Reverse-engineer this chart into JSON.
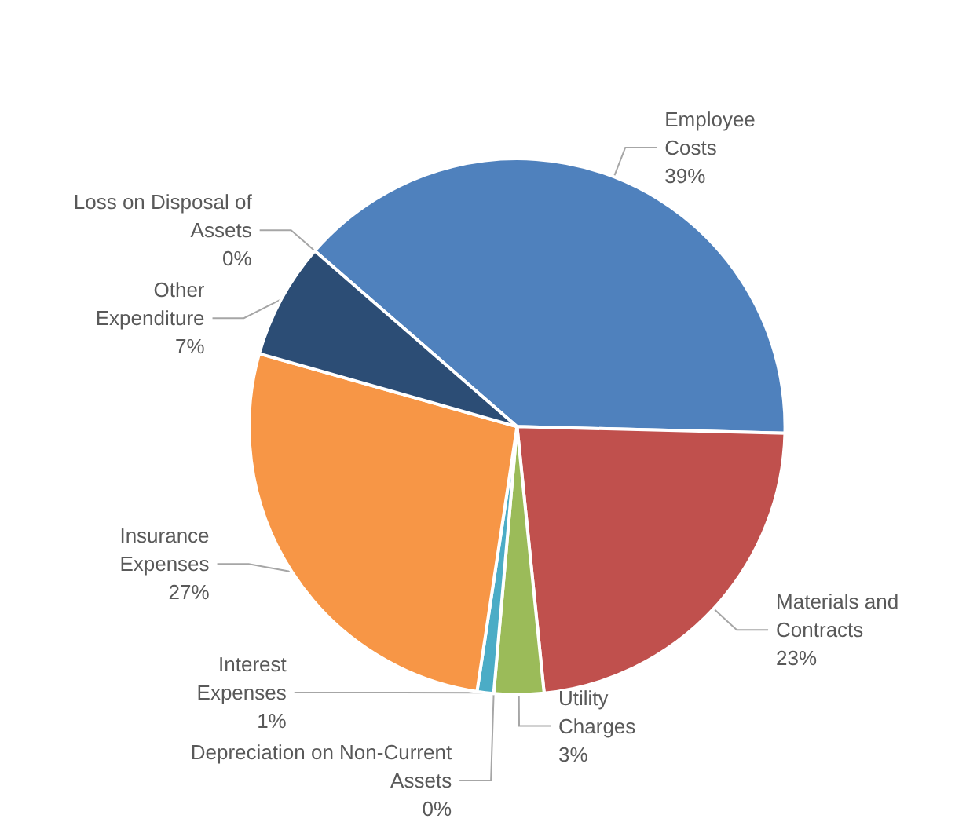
{
  "chart_data": {
    "type": "pie",
    "categories": [
      "Employee Costs",
      "Materials and Contracts",
      "Utility Charges",
      "Depreciation on Non-Current Assets",
      "Interest Expenses",
      "Insurance Expenses",
      "Other Expenditure",
      "Loss on Disposal of Assets"
    ],
    "values": [
      39,
      23,
      3,
      0,
      1,
      27,
      7,
      0
    ],
    "value_labels": [
      "39%",
      "23%",
      "3%",
      "0%",
      "1%",
      "27%",
      "7%",
      "0%"
    ],
    "colors": [
      "#4f81bd",
      "#c0504d",
      "#9bbb59",
      "#8064a2",
      "#4bacc6",
      "#f79646",
      "#2c4d75",
      "#772c2a"
    ],
    "legend": false
  }
}
